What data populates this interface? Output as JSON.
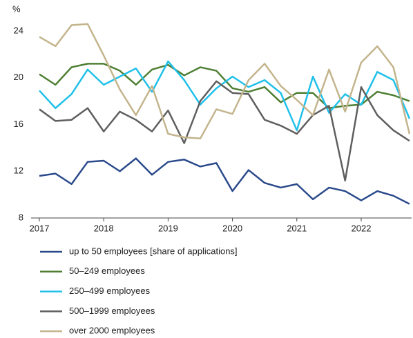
{
  "chart_data": {
    "type": "line",
    "y_unit": "%",
    "categories": [
      "2017",
      null,
      null,
      null,
      "2018",
      null,
      null,
      null,
      "2019",
      null,
      null,
      null,
      "2020",
      null,
      null,
      null,
      "2021",
      null,
      null,
      null,
      "2022",
      null,
      null,
      null
    ],
    "ylim": [
      8,
      25
    ],
    "yticks": [
      8,
      12,
      16,
      20,
      24
    ],
    "series": [
      {
        "name": "up to 50 employees [share of applications]",
        "color": "#2b4a8b",
        "values": [
          11.6,
          11.8,
          10.9,
          12.8,
          12.9,
          12.0,
          13.1,
          11.7,
          12.8,
          13.0,
          12.4,
          12.7,
          10.3,
          12.1,
          11.0,
          10.6,
          10.9,
          9.6,
          10.6,
          10.3,
          9.5,
          10.3,
          9.9,
          9.2
        ]
      },
      {
        "name": "50–249 employees",
        "color": "#4e7f33",
        "values": [
          20.3,
          19.4,
          20.9,
          21.2,
          21.2,
          20.6,
          19.4,
          20.7,
          21.1,
          20.2,
          20.9,
          20.6,
          19.1,
          18.8,
          19.2,
          17.9,
          18.7,
          18.7,
          17.4,
          17.6,
          17.7,
          18.8,
          18.5,
          18.0
        ]
      },
      {
        "name": "250–499 employees",
        "color": "#1fc0ea",
        "values": [
          18.9,
          17.4,
          18.6,
          20.7,
          19.4,
          20.1,
          20.8,
          18.8,
          21.4,
          19.8,
          17.7,
          19.1,
          20.1,
          19.2,
          19.8,
          18.7,
          15.5,
          20.1,
          17.0,
          18.6,
          17.7,
          20.5,
          19.8,
          16.5
        ]
      },
      {
        "name": "500–1999 employees",
        "color": "#5f5f5f",
        "values": [
          17.3,
          16.3,
          16.4,
          17.4,
          15.4,
          17.1,
          16.4,
          15.4,
          17.2,
          14.4,
          18.0,
          19.7,
          18.7,
          18.6,
          16.4,
          15.9,
          15.2,
          16.8,
          17.6,
          11.2,
          19.2,
          16.8,
          15.5,
          14.6
        ]
      },
      {
        "name": "over 2000 employees",
        "color": "#c3b48c",
        "values": [
          23.5,
          22.7,
          24.5,
          24.6,
          21.9,
          19.0,
          16.8,
          19.3,
          15.2,
          14.9,
          14.8,
          17.3,
          16.9,
          19.8,
          21.2,
          19.3,
          18.1,
          16.8,
          20.7,
          17.1,
          21.3,
          22.7,
          20.9,
          15.2
        ]
      }
    ]
  }
}
